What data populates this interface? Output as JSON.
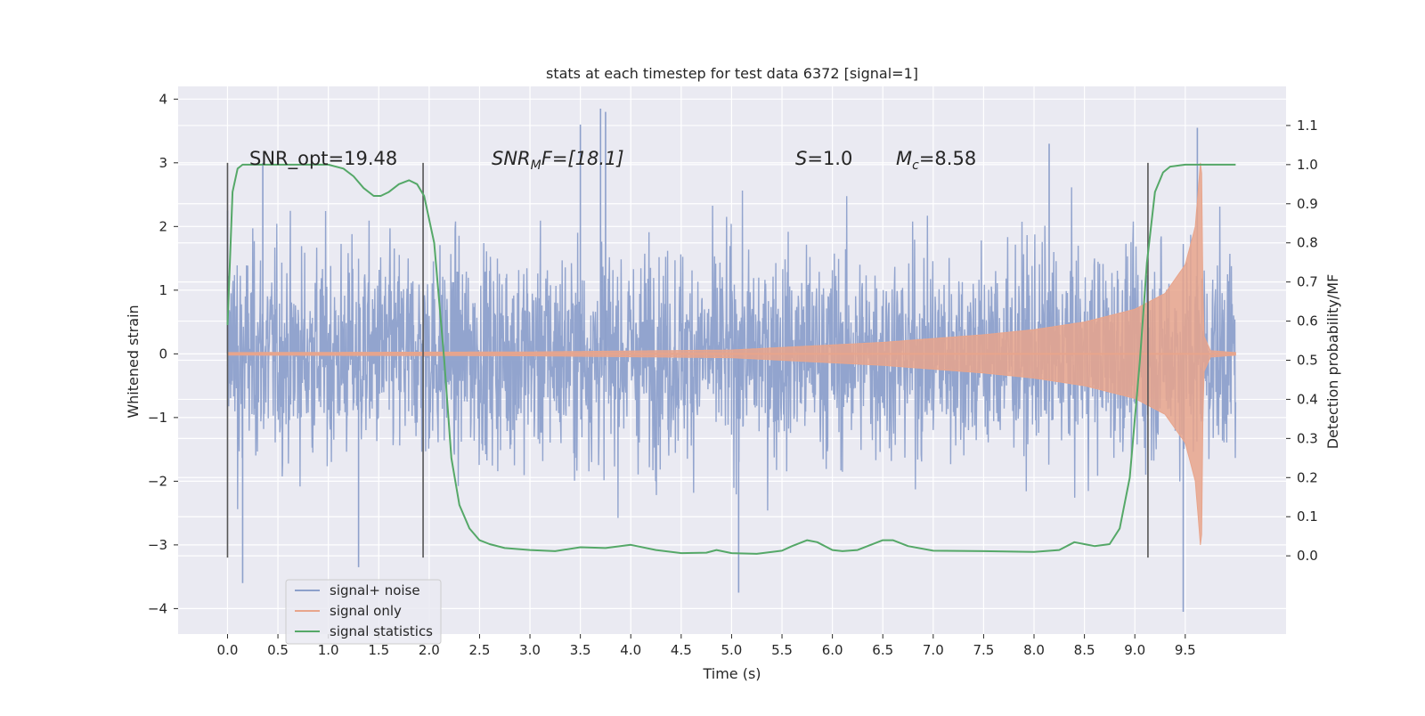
{
  "chart_data": {
    "type": "line",
    "title": "stats at each timestep for test data 6372 [signal=1]",
    "xlabel": "Time (s)",
    "ylabel": "Whitened strain",
    "ylabel_right": "Detection probability/MF",
    "xlim": [
      -0.49,
      10.5
    ],
    "ylim": [
      -4.4,
      4.2
    ],
    "ylim_right": [
      -0.2,
      1.2
    ],
    "x_ticks": [
      0.0,
      0.5,
      1.0,
      1.5,
      2.0,
      2.5,
      3.0,
      3.5,
      4.0,
      4.5,
      5.0,
      5.5,
      6.0,
      6.5,
      7.0,
      7.5,
      8.0,
      8.5,
      9.0,
      9.5
    ],
    "x_tick_labels": [
      "0.0",
      "0.5",
      "1.0",
      "1.5",
      "2.0",
      "2.5",
      "3.0",
      "3.5",
      "4.0",
      "4.5",
      "5.0",
      "5.5",
      "6.0",
      "6.5",
      "7.0",
      "7.5",
      "8.0",
      "8.5",
      "9.0",
      "9.5"
    ],
    "y_ticks": [
      4,
      3,
      2,
      1,
      0,
      -1,
      -2,
      -3,
      -4
    ],
    "y_tick_labels": [
      "4",
      "3",
      "2",
      "1",
      "0",
      "−1",
      "−2",
      "−3",
      "−4"
    ],
    "y_ticks_right": [
      1.1,
      1.0,
      0.9,
      0.8,
      0.7,
      0.6,
      0.5,
      0.4,
      0.3,
      0.2,
      0.1,
      0.0
    ],
    "y_tick_labels_right": [
      "1.1",
      "1.0",
      "0.9",
      "0.8",
      "0.7",
      "0.6",
      "0.5",
      "0.4",
      "0.3",
      "0.2",
      "0.1",
      "0.0"
    ],
    "grid": true,
    "legend_position": "lower-left",
    "annotations": {
      "snr_opt": "SNR_opt=19.48",
      "snr_mf_main": "SNR",
      "snr_mf_sub": "M",
      "snr_mf_rest": "F=[18.1]",
      "s_main": "S",
      "s_rest": "=1.0",
      "mc_main": "M",
      "mc_sub": "c",
      "mc_rest": "=8.58"
    },
    "vertical_markers_x": [
      0.0,
      1.94,
      9.13
    ],
    "vertical_markers_range": [
      -3.2,
      3.0
    ],
    "series": [
      {
        "name": "signal+ noise",
        "color": "#8da0cb",
        "axis": "left",
        "x_range": [
          0.0,
          10.0
        ],
        "noise_band_typical": [
          -2.0,
          2.0
        ],
        "spike_points": [
          {
            "x": 0.0,
            "y": 2.25
          },
          {
            "x": 0.15,
            "y": -3.6
          },
          {
            "x": 0.35,
            "y": 3.0
          },
          {
            "x": 1.3,
            "y": -3.35
          },
          {
            "x": 3.5,
            "y": 3.6
          },
          {
            "x": 3.7,
            "y": 3.85
          },
          {
            "x": 3.75,
            "y": 3.8
          },
          {
            "x": 5.07,
            "y": -3.75
          },
          {
            "x": 8.15,
            "y": 3.3
          },
          {
            "x": 9.48,
            "y": -4.05
          },
          {
            "x": 9.62,
            "y": 3.55
          }
        ]
      },
      {
        "name": "signal only",
        "color": "#e8a58c",
        "axis": "left",
        "envelope": [
          {
            "x": 0.0,
            "y": 0.02
          },
          {
            "x": 3.0,
            "y": 0.03
          },
          {
            "x": 5.0,
            "y": 0.06
          },
          {
            "x": 5.5,
            "y": 0.1
          },
          {
            "x": 6.0,
            "y": 0.14
          },
          {
            "x": 6.5,
            "y": 0.18
          },
          {
            "x": 7.0,
            "y": 0.24
          },
          {
            "x": 7.5,
            "y": 0.3
          },
          {
            "x": 8.0,
            "y": 0.38
          },
          {
            "x": 8.5,
            "y": 0.5
          },
          {
            "x": 9.0,
            "y": 0.7
          },
          {
            "x": 9.3,
            "y": 0.95
          },
          {
            "x": 9.5,
            "y": 1.4
          },
          {
            "x": 9.6,
            "y": 2.0
          },
          {
            "x": 9.66,
            "y": 3.2
          },
          {
            "x": 9.68,
            "y": 0.3
          },
          {
            "x": 9.75,
            "y": 0.05
          },
          {
            "x": 10.0,
            "y": 0.02
          }
        ]
      },
      {
        "name": "signal statistics",
        "color": "#55a868",
        "axis": "right",
        "x": [
          0.0,
          0.05,
          0.1,
          0.15,
          0.25,
          0.5,
          0.75,
          1.0,
          1.15,
          1.25,
          1.35,
          1.45,
          1.52,
          1.6,
          1.7,
          1.8,
          1.88,
          1.95,
          2.05,
          2.15,
          2.22,
          2.3,
          2.4,
          2.5,
          2.6,
          2.75,
          3.0,
          3.25,
          3.5,
          3.75,
          4.0,
          4.25,
          4.5,
          4.75,
          4.85,
          5.0,
          5.25,
          5.5,
          5.6,
          5.75,
          5.85,
          6.0,
          6.1,
          6.25,
          6.5,
          6.6,
          6.75,
          7.0,
          7.5,
          8.0,
          8.25,
          8.4,
          8.5,
          8.6,
          8.75,
          8.85,
          8.95,
          9.05,
          9.12,
          9.2,
          9.28,
          9.35,
          9.5,
          10.0
        ],
        "y": [
          0.59,
          0.93,
          0.99,
          1.0,
          1.0,
          1.0,
          1.0,
          1.0,
          0.99,
          0.97,
          0.94,
          0.92,
          0.92,
          0.93,
          0.95,
          0.96,
          0.95,
          0.92,
          0.8,
          0.5,
          0.25,
          0.13,
          0.07,
          0.04,
          0.03,
          0.02,
          0.015,
          0.012,
          0.022,
          0.02,
          0.028,
          0.015,
          0.007,
          0.008,
          0.015,
          0.007,
          0.005,
          0.013,
          0.025,
          0.04,
          0.035,
          0.015,
          0.012,
          0.015,
          0.04,
          0.04,
          0.025,
          0.013,
          0.012,
          0.01,
          0.015,
          0.035,
          0.03,
          0.025,
          0.03,
          0.07,
          0.2,
          0.5,
          0.75,
          0.93,
          0.98,
          0.995,
          1.0,
          1.0
        ]
      }
    ]
  }
}
